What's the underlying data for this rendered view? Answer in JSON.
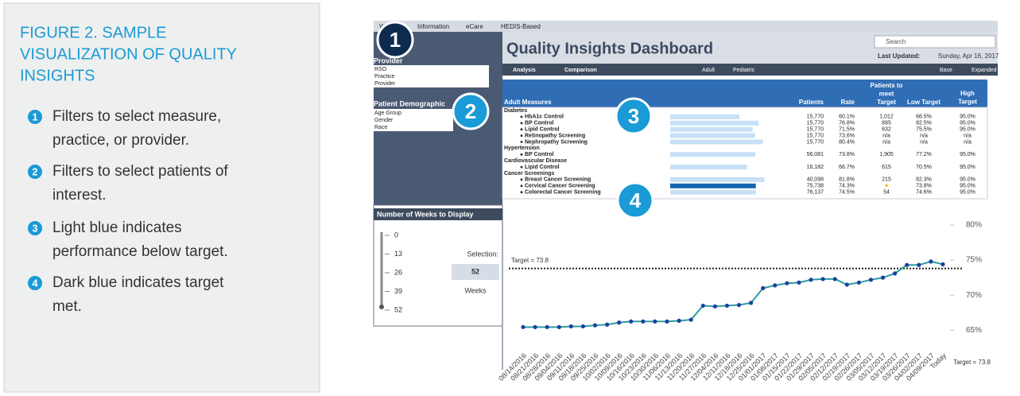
{
  "figure": {
    "title_lines": [
      "FIGURE 2. SAMPLE",
      "VISUALIZATION OF QUALITY",
      "INSIGHTS"
    ],
    "items": [
      {
        "number": "1",
        "lines": [
          "Filters to select measure,",
          "practice, or provider."
        ]
      },
      {
        "number": "2",
        "lines": [
          "Filters to select patients of",
          "interest."
        ]
      },
      {
        "number": "3",
        "lines": [
          "Light blue indicates",
          "performance below target."
        ]
      },
      {
        "number": "4",
        "lines": [
          "Dark blue indicates target",
          "met."
        ]
      }
    ]
  },
  "dashboard": {
    "tabs": [
      "Welcome",
      "Information",
      "eCare",
      "HEDIS-Based"
    ],
    "title": "Quality Insights Dashboard",
    "search": "Search",
    "last_updated_label": "Last Updated:",
    "last_updated": "Sunday, Apr 16, 2017",
    "nav": [
      "Analysis",
      "Comparison",
      "Adult",
      "Pediatric",
      "Base",
      "Expanded"
    ],
    "callouts": [
      "1",
      "2",
      "3",
      "4"
    ],
    "provider_filter": {
      "title": "Provider",
      "fields": [
        "RSO",
        "Practice",
        "Provider"
      ]
    },
    "demographic_filter": {
      "title": "Patient Demographic",
      "fields": [
        "Age Group",
        "Gender",
        "Race"
      ]
    },
    "weeks": {
      "title": "Number of Weeks to Display",
      "ticks": [
        "0",
        "13",
        "26",
        "39",
        "52"
      ],
      "selection_label": "Selection:",
      "selection": "52",
      "unit": "Weeks"
    },
    "table": {
      "columns": [
        "Adult Measures",
        "Patients",
        "Rate",
        "Patients to meet Target",
        "Low Target",
        "High Target"
      ],
      "bar_color_below": "#c7e0f6",
      "bar_color_met": "#1665b0",
      "groups": [
        {
          "name": "Diabetes",
          "rows": [
            {
              "measure": "HbA1c Control",
              "patients": "15,770",
              "rate": "60.1%",
              "to_target": "1,012",
              "low": "66.5%",
              "high": "95.0%"
            },
            {
              "measure": "BP Control",
              "patients": "15,770",
              "rate": "76.8%",
              "to_target": "895",
              "low": "82.5%",
              "high": "95.0%"
            },
            {
              "measure": "Lipid Control",
              "patients": "15,770",
              "rate": "71.5%",
              "to_target": "632",
              "low": "75.5%",
              "high": "95.0%"
            },
            {
              "measure": "Retinopathy Screening",
              "patients": "15,770",
              "rate": "73.6%",
              "to_target": "n/a",
              "low": "n/a",
              "high": "n/a"
            },
            {
              "measure": "Nephropathy Screening",
              "patients": "15,770",
              "rate": "80.4%",
              "to_target": "n/a",
              "low": "n/a",
              "high": "n/a"
            }
          ]
        },
        {
          "name": "Hypertension",
          "rows": [
            {
              "measure": "BP Control",
              "patients": "56,081",
              "rate": "73.8%",
              "to_target": "1,905",
              "low": "77.2%",
              "high": "95.0%"
            }
          ]
        },
        {
          "name": "Cardiovascular Disease",
          "rows": [
            {
              "measure": "Lipid Control",
              "patients": "16,182",
              "rate": "66.7%",
              "to_target": "615",
              "low": "70.5%",
              "high": "95.0%"
            }
          ]
        },
        {
          "name": "Cancer Screenings",
          "rows": [
            {
              "measure": "Breast Cancer Screening",
              "patients": "40,098",
              "rate": "81.8%",
              "to_target": "215",
              "low": "82.3%",
              "high": "95.0%"
            },
            {
              "measure": "Cervical Cancer Screening",
              "patients": "75,738",
              "rate": "74.3%",
              "to_target": "★",
              "low": "73.8%",
              "high": "95.0%",
              "met": true
            },
            {
              "measure": "Colorectal Cancer Screening",
              "patients": "76,137",
              "rate": "74.5%",
              "to_target": "54",
              "low": "74.6%",
              "high": "95.0%"
            }
          ]
        }
      ]
    }
  },
  "chart_data": {
    "type": "line",
    "color": "#1f3f9e",
    "target": 73.8,
    "target_label": "Target = 73.8",
    "x": [
      "08/14/2016",
      "08/21/2016",
      "08/28/2016",
      "09/04/2016",
      "09/11/2016",
      "09/18/2016",
      "09/25/2016",
      "10/02/2016",
      "10/09/2016",
      "10/16/2016",
      "10/23/2016",
      "10/30/2016",
      "11/06/2016",
      "11/13/2016",
      "11/20/2016",
      "11/27/2016",
      "12/04/2016",
      "12/11/2016",
      "12/18/2016",
      "12/25/2016",
      "01/01/2017",
      "01/08/2017",
      "01/15/2017",
      "01/22/2017",
      "01/29/2017",
      "02/05/2017",
      "02/12/2017",
      "02/19/2017",
      "02/26/2017",
      "03/05/2017",
      "03/12/2017",
      "03/19/2017",
      "03/26/2017",
      "04/02/2017",
      "04/09/2017",
      "Today"
    ],
    "values": [
      65.45,
      65.45,
      65.45,
      65.45,
      65.55,
      65.55,
      65.7,
      65.8,
      66.1,
      66.25,
      66.25,
      66.25,
      66.25,
      66.35,
      66.5,
      68.5,
      68.4,
      68.5,
      68.6,
      68.9,
      71.0,
      71.4,
      71.7,
      71.8,
      72.2,
      72.3,
      72.3,
      71.5,
      71.8,
      72.2,
      72.5,
      73.1,
      74.3,
      74.3,
      74.8,
      74.4
    ],
    "ylim": [
      62.2,
      81.7
    ],
    "yticks": [
      {
        "value": 65,
        "label": "65%"
      },
      {
        "value": 70,
        "label": "70%"
      },
      {
        "value": 75,
        "label": "75%"
      },
      {
        "value": 80,
        "label": "80%"
      }
    ]
  }
}
